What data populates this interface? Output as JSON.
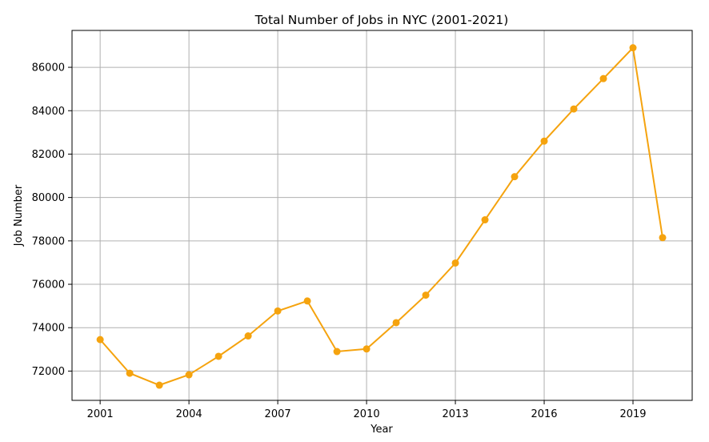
{
  "chart_data": {
    "type": "line",
    "title": "Total Number of Jobs in NYC (2001-2021)",
    "xlabel": "Year",
    "ylabel": "Job Number",
    "x_ticks": [
      2001,
      2004,
      2007,
      2010,
      2013,
      2016,
      2019
    ],
    "y_ticks": [
      72000,
      74000,
      76000,
      78000,
      80000,
      82000,
      84000,
      86000
    ],
    "xlim": [
      2000.05,
      2021.0
    ],
    "ylim": [
      70650,
      87700
    ],
    "grid": true,
    "line_color": "#f5a30e",
    "series": [
      {
        "x": [
          2001,
          2002,
          2003,
          2004,
          2005,
          2006,
          2007,
          2008,
          2009,
          2010,
          2011,
          2012,
          2013,
          2014,
          2015,
          2016,
          2017,
          2018,
          2019,
          2020
        ],
        "values": [
          73450,
          71900,
          71350,
          71830,
          72680,
          73620,
          74770,
          75230,
          72900,
          73020,
          74230,
          75500,
          76980,
          78970,
          80960,
          82600,
          84080,
          85480,
          86900,
          78150
        ]
      }
    ]
  }
}
